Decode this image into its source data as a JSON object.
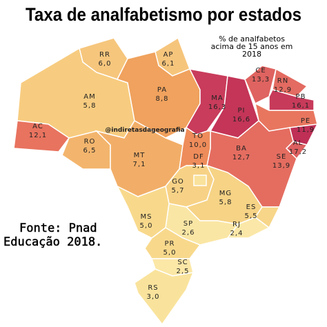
{
  "title": "Taxa de analfabetismo por estados",
  "subtitle": [
    "% de analfabetos",
    "acima de 15 anos em",
    "2018"
  ],
  "watermark": "@indiretasdageografia",
  "source": [
    "Fonte: Pnad",
    "Educação 2018."
  ],
  "states": [
    {
      "code": "RR",
      "value": "6,0",
      "color": "#f6c67d"
    },
    {
      "code": "AP",
      "value": "6,1",
      "color": "#f6c57c"
    },
    {
      "code": "AM",
      "value": "5,8",
      "color": "#f7cc80"
    },
    {
      "code": "AC",
      "value": "12,1",
      "color": "#e8735f"
    },
    {
      "code": "PA",
      "value": "8,8",
      "color": "#f0a25e"
    },
    {
      "code": "RO",
      "value": "6,5",
      "color": "#f3b56d"
    },
    {
      "code": "MT",
      "value": "7,1",
      "color": "#f2ae68"
    },
    {
      "code": "MA",
      "value": "16,3",
      "color": "#c93c5b"
    },
    {
      "code": "PI",
      "value": "16,6",
      "color": "#c43558"
    },
    {
      "code": "CE",
      "value": "13,3",
      "color": "#df6360"
    },
    {
      "code": "RN",
      "value": "12,9",
      "color": "#e36b61"
    },
    {
      "code": "PB",
      "value": "16,1",
      "color": "#c73a5a"
    },
    {
      "code": "PE",
      "value": "11,9",
      "color": "#e8765f"
    },
    {
      "code": "AL",
      "value": "17,2",
      "color": "#bf2f56"
    },
    {
      "code": "SE",
      "value": "13,9",
      "color": "#dd5f5f"
    },
    {
      "code": "BA",
      "value": "12,7",
      "color": "#e46d60"
    },
    {
      "code": "TO",
      "value": "10,0",
      "color": "#ee8c5b"
    },
    {
      "code": "GO",
      "value": "5,7",
      "color": "#f7d286"
    },
    {
      "code": "DF",
      "value": "3,1",
      "color": "#f9e29b"
    },
    {
      "code": "MG",
      "value": "5,8",
      "color": "#f6d385"
    },
    {
      "code": "ES",
      "value": "5,5",
      "color": "#f7d689"
    },
    {
      "code": "RJ",
      "value": "2,4",
      "color": "#fbe8a8"
    },
    {
      "code": "SP",
      "value": "2,6",
      "color": "#fae6a4"
    },
    {
      "code": "MS",
      "value": "5,0",
      "color": "#f8d98c"
    },
    {
      "code": "PR",
      "value": "5,0",
      "color": "#f8d98c"
    },
    {
      "code": "SC",
      "value": "2,5",
      "color": "#fbe7a6"
    },
    {
      "code": "RS",
      "value": "3,0",
      "color": "#f9e39c"
    }
  ]
}
